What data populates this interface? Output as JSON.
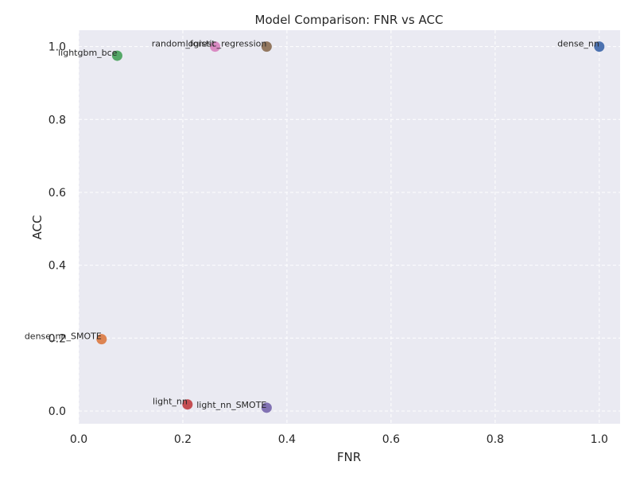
{
  "chart_data": {
    "type": "scatter",
    "title": "Model Comparison: FNR vs ACC",
    "xlabel": "FNR",
    "ylabel": "ACC",
    "xlim": [
      0,
      1.04
    ],
    "ylim": [
      -0.035,
      1.045
    ],
    "xticks": [
      "0.0",
      "0.2",
      "0.4",
      "0.6",
      "0.8",
      "1.0"
    ],
    "yticks": [
      "0.0",
      "0.2",
      "0.4",
      "0.6",
      "0.8",
      "1.0"
    ],
    "grid": true,
    "points": [
      {
        "label": "dense_nn",
        "x": 1.0,
        "y": 1.0,
        "color": "#4c72b0"
      },
      {
        "label": "dense_nn_SMOTE",
        "x": 0.044,
        "y": 0.197,
        "color": "#dd8452"
      },
      {
        "label": "lightgbm_bce",
        "x": 0.074,
        "y": 0.975,
        "color": "#55a868"
      },
      {
        "label": "light_nn",
        "x": 0.209,
        "y": 0.018,
        "color": "#c44e52"
      },
      {
        "label": "light_nn_SMOTE",
        "x": 0.361,
        "y": 0.009,
        "color": "#8172b3"
      },
      {
        "label": "logistic_regression",
        "x": 0.361,
        "y": 1.0,
        "color": "#937860"
      },
      {
        "label": "random_forest",
        "x": 0.262,
        "y": 1.0,
        "color": "#da8bc3"
      }
    ]
  }
}
